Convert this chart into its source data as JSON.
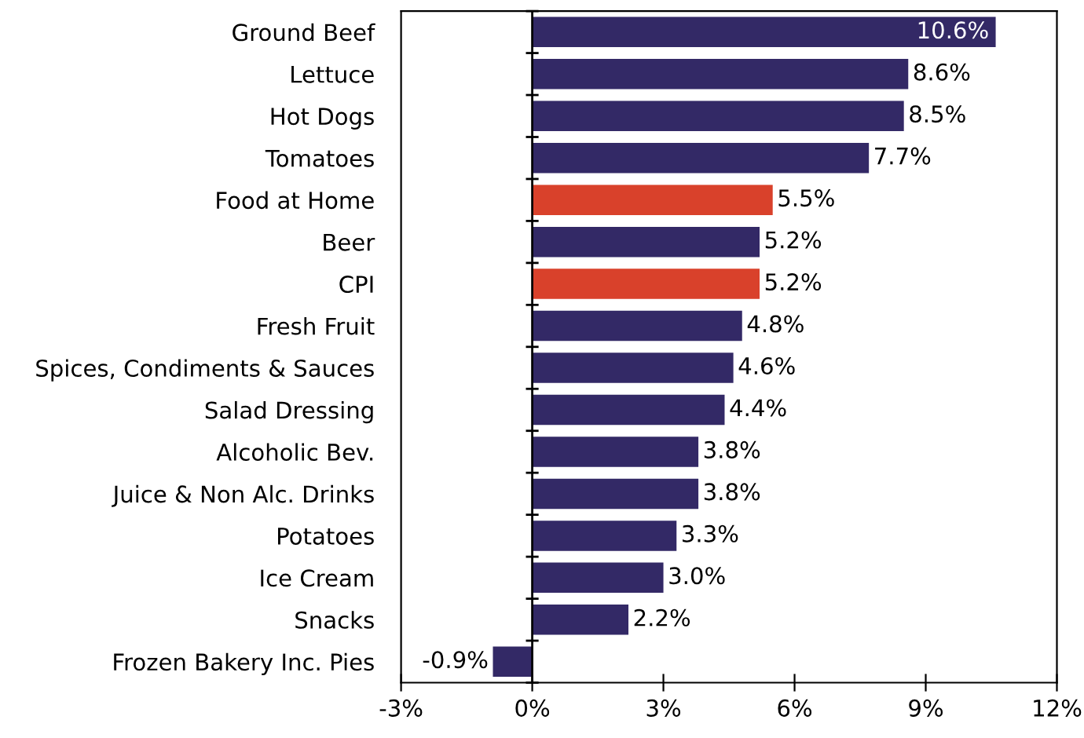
{
  "chart_data": {
    "type": "bar",
    "orientation": "horizontal",
    "categories": [
      "Ground Beef",
      "Lettuce",
      "Hot Dogs",
      "Tomatoes",
      "Food at Home",
      "Beer",
      "CPI",
      "Fresh Fruit",
      "Spices, Condiments & Sauces",
      "Salad Dressing",
      "Alcoholic Bev.",
      "Juice & Non Alc. Drinks",
      "Potatoes",
      "Ice Cream",
      "Snacks",
      "Frozen Bakery Inc. Pies"
    ],
    "values": [
      10.6,
      8.6,
      8.5,
      7.7,
      5.5,
      5.2,
      5.2,
      4.8,
      4.6,
      4.4,
      3.8,
      3.8,
      3.3,
      3.0,
      2.2,
      -0.9
    ],
    "value_labels": [
      "10.6%",
      "8.6%",
      "8.5%",
      "7.7%",
      "5.5%",
      "5.2%",
      "5.2%",
      "4.8%",
      "4.6%",
      "4.4%",
      "3.8%",
      "3.8%",
      "3.3%",
      "3.0%",
      "2.2%",
      "-0.9%"
    ],
    "colors": [
      "#332966",
      "#332966",
      "#332966",
      "#332966",
      "#d9412b",
      "#332966",
      "#d9412b",
      "#332966",
      "#332966",
      "#332966",
      "#332966",
      "#332966",
      "#332966",
      "#332966",
      "#332966",
      "#332966"
    ],
    "xlim": [
      -3,
      12
    ],
    "xticks": [
      {
        "value": -3,
        "label": "-3%"
      },
      {
        "value": 0,
        "label": "0%"
      },
      {
        "value": 3,
        "label": "3%"
      },
      {
        "value": 6,
        "label": "6%"
      },
      {
        "value": 9,
        "label": "9%"
      },
      {
        "value": 12,
        "label": "12%"
      }
    ],
    "tick_labels": "xy"
  }
}
